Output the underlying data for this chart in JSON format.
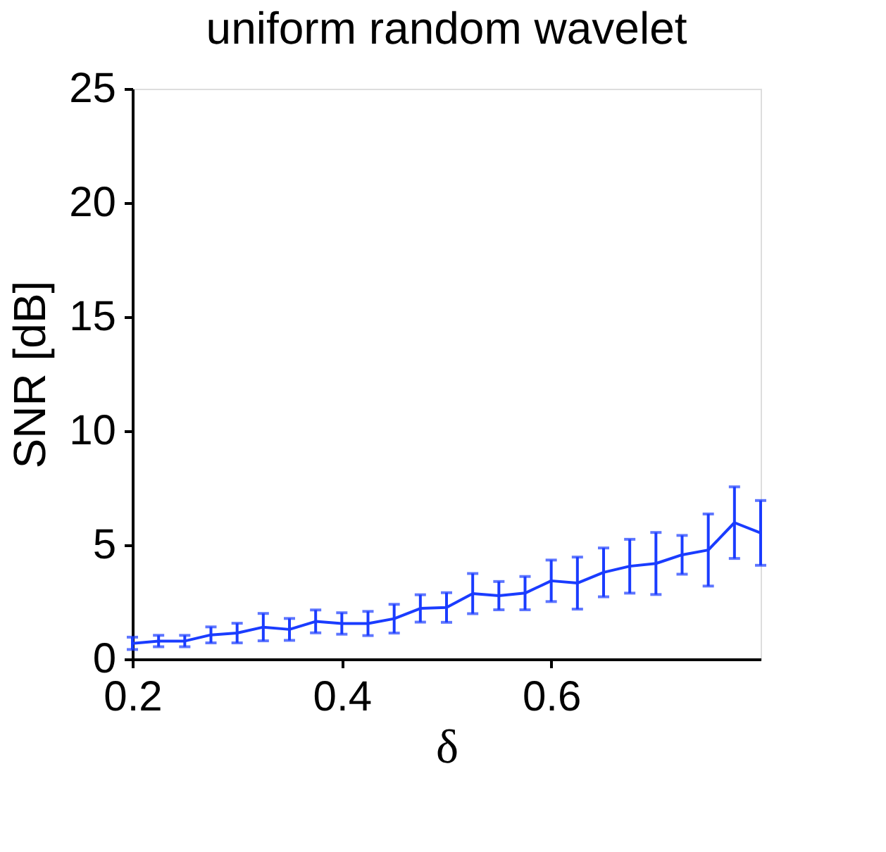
{
  "chart_data": {
    "type": "line",
    "title": "uniform random wavelet",
    "xlabel": "δ",
    "ylabel": "SNR [dB]",
    "x": [
      0.2,
      0.225,
      0.25,
      0.275,
      0.3,
      0.325,
      0.35,
      0.375,
      0.4,
      0.425,
      0.45,
      0.475,
      0.5,
      0.525,
      0.55,
      0.575,
      0.6,
      0.625,
      0.65,
      0.675,
      0.7,
      0.725,
      0.75,
      0.775,
      0.8
    ],
    "series": [
      {
        "color": "#1a3cff",
        "values": [
          0.69,
          0.79,
          0.79,
          1.06,
          1.14,
          1.4,
          1.3,
          1.65,
          1.56,
          1.56,
          1.77,
          2.22,
          2.26,
          2.87,
          2.78,
          2.89,
          3.43,
          3.33,
          3.8,
          4.07,
          4.19,
          4.57,
          4.78,
          5.98,
          5.53
        ],
        "errors": [
          0.27,
          0.25,
          0.25,
          0.35,
          0.43,
          0.6,
          0.48,
          0.5,
          0.47,
          0.53,
          0.63,
          0.6,
          0.65,
          0.88,
          0.62,
          0.73,
          0.91,
          1.14,
          1.07,
          1.18,
          1.36,
          0.85,
          1.58,
          1.57,
          1.42
        ]
      }
    ],
    "xlim": [
      0.2,
      0.8
    ],
    "xticks": [
      0.2,
      0.4,
      0.6
    ],
    "ylim": [
      0,
      25
    ],
    "yticks": [
      0,
      5,
      10,
      15,
      20,
      25
    ],
    "grid": false,
    "marker": "none",
    "line_style": "solid"
  }
}
